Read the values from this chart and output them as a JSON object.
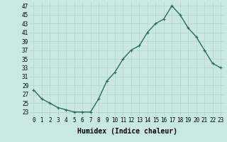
{
  "x": [
    0,
    1,
    2,
    3,
    4,
    5,
    6,
    7,
    8,
    9,
    10,
    11,
    12,
    13,
    14,
    15,
    16,
    17,
    18,
    19,
    20,
    21,
    22,
    23
  ],
  "y": [
    28,
    26,
    25,
    24,
    23.5,
    23,
    23,
    23,
    26,
    30,
    32,
    35,
    37,
    38,
    41,
    43,
    44,
    47,
    45,
    42,
    40,
    37,
    34,
    33
  ],
  "line_color": "#2e6b5e",
  "marker": "+",
  "bg_color": "#c8e8e0",
  "grid_color": "#b0d4cc",
  "xlabel": "Humidex (Indice chaleur)",
  "xlim": [
    -0.5,
    23.5
  ],
  "ylim": [
    22.0,
    48.0
  ],
  "yticks": [
    23,
    25,
    27,
    29,
    31,
    33,
    35,
    37,
    39,
    41,
    43,
    45,
    47
  ],
  "xticks": [
    0,
    1,
    2,
    3,
    4,
    5,
    6,
    7,
    8,
    9,
    10,
    11,
    12,
    13,
    14,
    15,
    16,
    17,
    18,
    19,
    20,
    21,
    22,
    23
  ],
  "tick_fontsize": 5.5,
  "xlabel_fontsize": 7.0,
  "markersize": 3,
  "linewidth": 1.0
}
